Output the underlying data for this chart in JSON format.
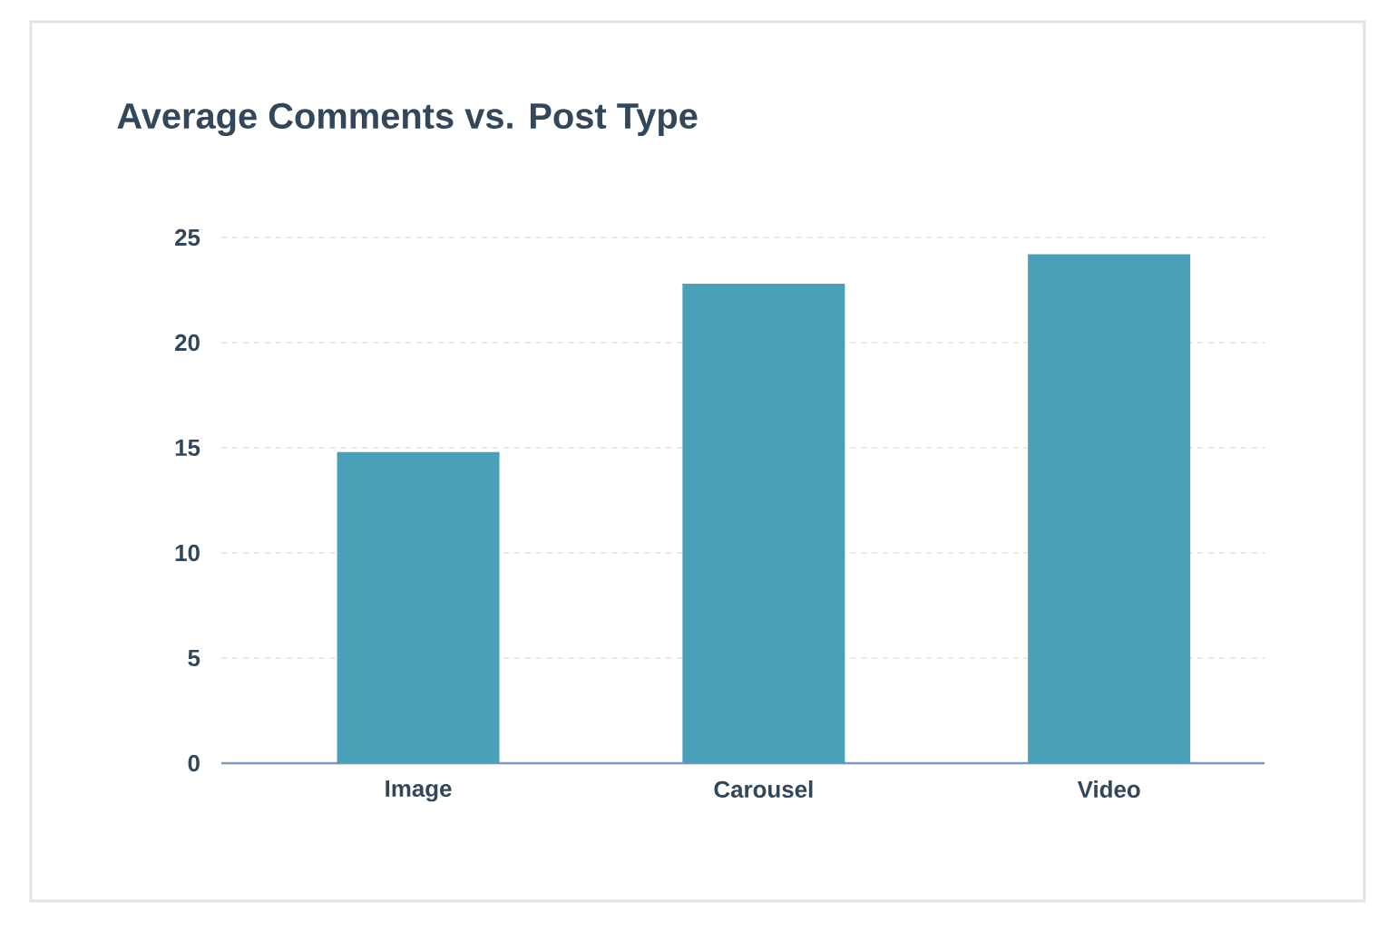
{
  "chart_data": {
    "type": "bar",
    "title": "Average Comments vs. Post Type",
    "categories": [
      "Image",
      "Carousel",
      "Video"
    ],
    "values": [
      14.8,
      22.8,
      24.2
    ],
    "color": "#4aa0b8",
    "ylim": [
      0,
      25
    ],
    "yticks": [
      0,
      5,
      10,
      15,
      20,
      25
    ],
    "grid": "y"
  }
}
